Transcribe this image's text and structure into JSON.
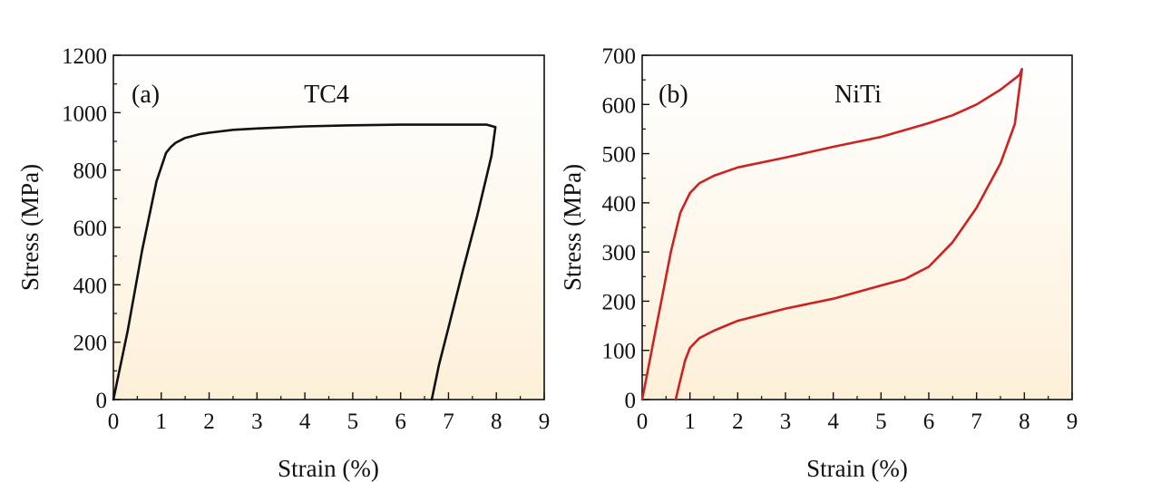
{
  "chart_data": [
    {
      "type": "line",
      "panel_label": "(a)",
      "title": "TC4",
      "title_color": "#111111",
      "xlabel": "Strain (%)",
      "ylabel": "Stress (MPa)",
      "xlim": [
        0,
        9
      ],
      "ylim": [
        0,
        1200
      ],
      "xticks": [
        "0",
        "1",
        "2",
        "3",
        "4",
        "5",
        "6",
        "7",
        "8",
        "9"
      ],
      "yticks": [
        "0",
        "200",
        "400",
        "600",
        "800",
        "1000",
        "1200"
      ],
      "background": "gradient: #fdf0d8 (bottom) to #ffffff (top)",
      "grid": false,
      "series": [
        {
          "color": "#111111",
          "x": [
            0,
            0.3,
            0.6,
            0.9,
            1.1,
            1.2,
            1.3,
            1.5,
            1.8,
            2.0,
            2.5,
            3.0,
            4.0,
            5.0,
            6.0,
            7.0,
            7.8,
            7.98,
            7.9,
            7.6,
            7.3,
            7.0,
            6.8,
            6.65
          ],
          "y": [
            0,
            240,
            520,
            760,
            860,
            880,
            895,
            912,
            925,
            930,
            940,
            945,
            952,
            956,
            958,
            958,
            958,
            950,
            850,
            640,
            450,
            250,
            120,
            0
          ]
        }
      ]
    },
    {
      "type": "line",
      "panel_label": "(b)",
      "title": "NiTi",
      "title_color": "#cc2222",
      "xlabel": "Strain (%)",
      "ylabel": "Stress (MPa)",
      "xlim": [
        0,
        9
      ],
      "ylim": [
        0,
        700
      ],
      "xticks": [
        "0",
        "1",
        "2",
        "3",
        "4",
        "5",
        "6",
        "7",
        "8",
        "9"
      ],
      "yticks": [
        "0",
        "100",
        "200",
        "300",
        "400",
        "500",
        "600",
        "700"
      ],
      "background": "gradient: #fdf0d8 (bottom) to #ffffff (top)",
      "grid": false,
      "series": [
        {
          "color": "#cc2222",
          "x": [
            0,
            0.2,
            0.4,
            0.6,
            0.8,
            1.0,
            1.2,
            1.5,
            2.0,
            3.0,
            4.0,
            5.0,
            5.5,
            6.0,
            6.5,
            7.0,
            7.5,
            7.9,
            7.95,
            7.8,
            7.5,
            7.0,
            6.5,
            6.0,
            5.5,
            5.0,
            4.0,
            3.0,
            2.0,
            1.5,
            1.2,
            1.0,
            0.9,
            0.8,
            0.7
          ],
          "y": [
            0,
            100,
            200,
            300,
            380,
            420,
            440,
            455,
            472,
            492,
            514,
            534,
            548,
            562,
            578,
            600,
            630,
            660,
            672,
            560,
            480,
            390,
            320,
            270,
            245,
            232,
            205,
            185,
            160,
            140,
            125,
            105,
            80,
            40,
            0
          ]
        }
      ]
    }
  ]
}
